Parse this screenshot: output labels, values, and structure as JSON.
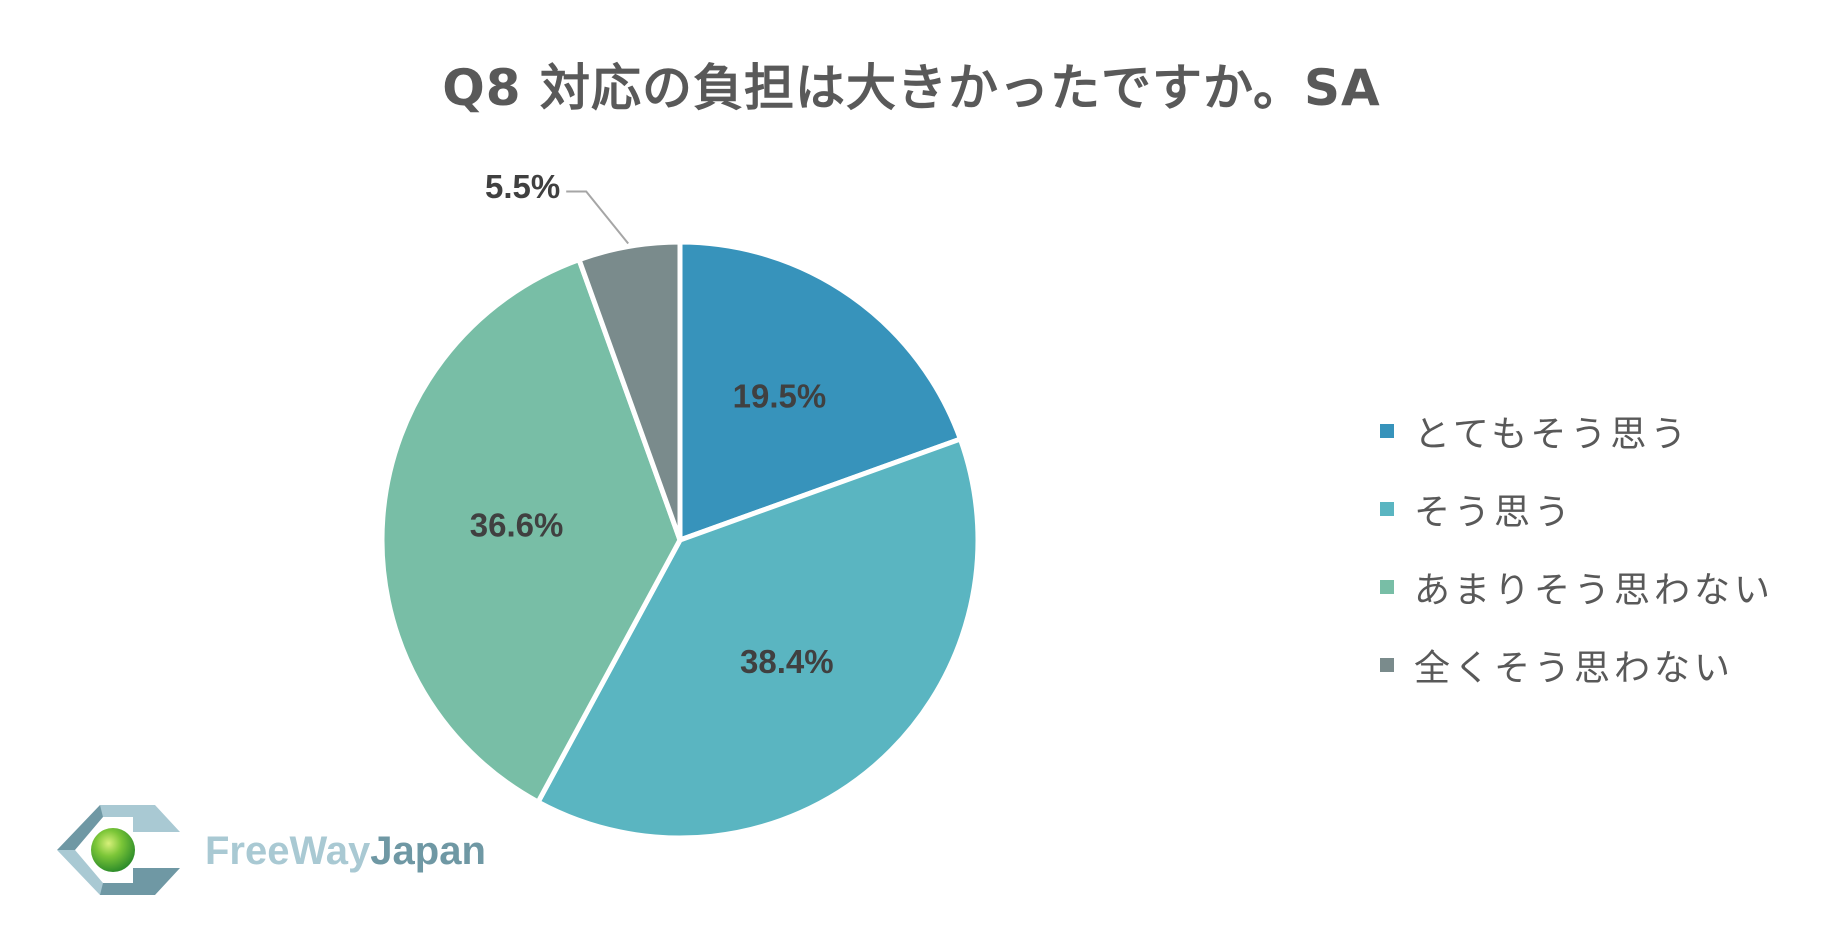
{
  "colors": {
    "background": "#ffffff",
    "title": "#595959",
    "label": "#404040",
    "legend_text": "#595959"
  },
  "chart_data": {
    "type": "pie",
    "title": "Q8 対応の負担は大きかったですか。SA",
    "start_angle_deg": 0,
    "direction": "clockwise",
    "slices": [
      {
        "label": "とてもそう思う",
        "value": 19.5,
        "display": "19.5%",
        "color": "#3793bb"
      },
      {
        "label": "そう思う",
        "value": 38.4,
        "display": "38.4%",
        "color": "#5ab5c1"
      },
      {
        "label": "あまりそう思わない",
        "value": 36.6,
        "display": "36.6%",
        "color": "#78bea6"
      },
      {
        "label": "全くそう思わない",
        "value": 5.5,
        "display": "5.5%",
        "color": "#7a8b8c"
      }
    ],
    "legend_position": "right"
  },
  "logo": {
    "text_part1": "FreeWay",
    "text_part2": "Japan"
  }
}
